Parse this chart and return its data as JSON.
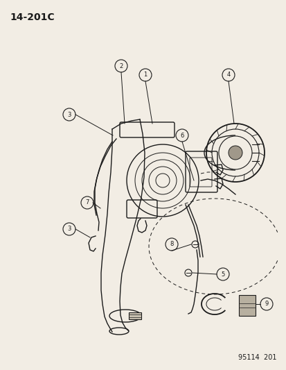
{
  "title_code": "14-201C",
  "footer_code": "95114  201",
  "bg_color": "#f2ede4",
  "line_color": "#1a1a1a",
  "fig_w": 4.14,
  "fig_h": 5.33,
  "dpi": 100
}
